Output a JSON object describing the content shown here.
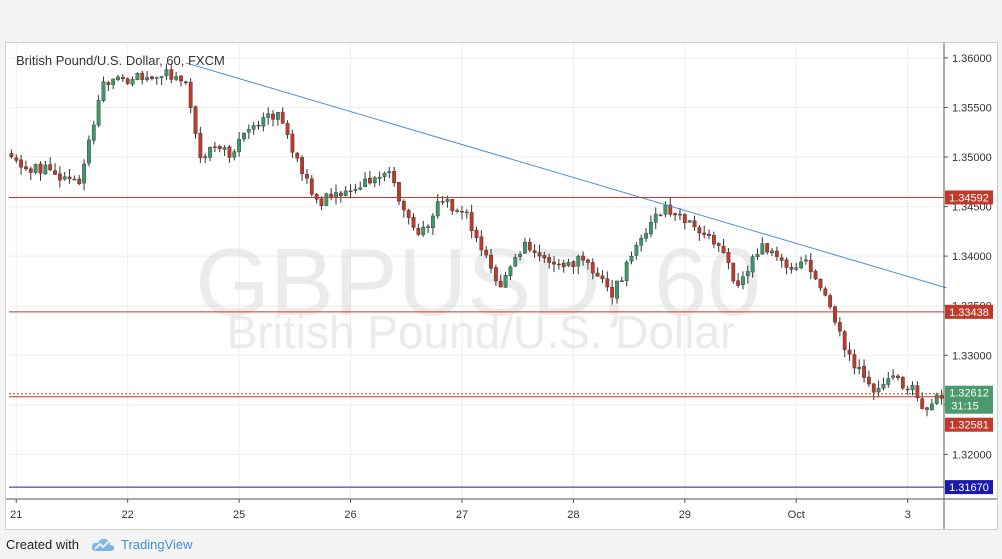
{
  "chart_data": {
    "type": "candlestick",
    "title": "British Pound/U.S. Dollar, 60, FXCM",
    "watermark": {
      "symbol": "GBPUSD, 60",
      "name": "British Pound/U.S. Dollar"
    },
    "ylim": [
      1.3155,
      1.3615
    ],
    "y_ticks": [
      "1.36000",
      "1.35500",
      "1.35000",
      "1.34500",
      "1.34000",
      "1.33500",
      "1.33000",
      "1.32500",
      "1.32000"
    ],
    "y_tick_values": [
      1.36,
      1.355,
      1.35,
      1.345,
      1.34,
      1.335,
      1.33,
      1.325,
      1.32
    ],
    "x_ticks": [
      {
        "label": "21",
        "bar": 1
      },
      {
        "label": "22",
        "bar": 24
      },
      {
        "label": "25",
        "bar": 47
      },
      {
        "label": "26",
        "bar": 70
      },
      {
        "label": "27",
        "bar": 93
      },
      {
        "label": "28",
        "bar": 116
      },
      {
        "label": "29",
        "bar": 139
      },
      {
        "label": "Oct",
        "bar": 162
      },
      {
        "label": "3",
        "bar": 185
      }
    ],
    "bar_count": 193,
    "up_color": "#3a9b6a",
    "down_color": "#c0392b",
    "seed": 20171003,
    "key_prices": [
      {
        "bar": 0,
        "close": 1.3495
      },
      {
        "bar": 8,
        "close": 1.3485
      },
      {
        "bar": 14,
        "close": 1.3475
      },
      {
        "bar": 19,
        "close": 1.3575
      },
      {
        "bar": 24,
        "close": 1.3578
      },
      {
        "bar": 32,
        "close": 1.3585
      },
      {
        "bar": 36,
        "close": 1.3575
      },
      {
        "bar": 39,
        "close": 1.3505
      },
      {
        "bar": 45,
        "close": 1.3505
      },
      {
        "bar": 50,
        "close": 1.353
      },
      {
        "bar": 55,
        "close": 1.3545
      },
      {
        "bar": 60,
        "close": 1.348
      },
      {
        "bar": 64,
        "close": 1.3455
      },
      {
        "bar": 70,
        "close": 1.347
      },
      {
        "bar": 78,
        "close": 1.348
      },
      {
        "bar": 84,
        "close": 1.342
      },
      {
        "bar": 89,
        "close": 1.3458
      },
      {
        "bar": 94,
        "close": 1.344
      },
      {
        "bar": 101,
        "close": 1.337
      },
      {
        "bar": 106,
        "close": 1.341
      },
      {
        "bar": 112,
        "close": 1.3395
      },
      {
        "bar": 119,
        "close": 1.3395
      },
      {
        "bar": 124,
        "close": 1.336
      },
      {
        "bar": 130,
        "close": 1.342
      },
      {
        "bar": 135,
        "close": 1.345
      },
      {
        "bar": 141,
        "close": 1.343
      },
      {
        "bar": 146,
        "close": 1.341
      },
      {
        "bar": 150,
        "close": 1.337
      },
      {
        "bar": 155,
        "close": 1.341
      },
      {
        "bar": 160,
        "close": 1.3385
      },
      {
        "bar": 164,
        "close": 1.3395
      },
      {
        "bar": 168,
        "close": 1.336
      },
      {
        "bar": 172,
        "close": 1.331
      },
      {
        "bar": 177,
        "close": 1.3265
      },
      {
        "bar": 181,
        "close": 1.3275
      },
      {
        "bar": 186,
        "close": 1.327
      },
      {
        "bar": 188,
        "close": 1.3245
      },
      {
        "bar": 192,
        "close": 1.326
      }
    ],
    "trendline": {
      "from": {
        "bar": 36,
        "price": 1.3595
      },
      "to": {
        "bar": 193,
        "price": 1.3368
      },
      "color": "#4a8fd8"
    },
    "horizontal_lines": [
      {
        "price": 1.34592,
        "label": "1.34592",
        "color": "#c0392b"
      },
      {
        "price": 1.33438,
        "label": "1.33438",
        "color": "#c0392b"
      },
      {
        "price": 1.32581,
        "label": "1.32581",
        "color": "#c0392b"
      },
      {
        "price": 1.3167,
        "label": "1.31670",
        "color": "#1a1aaa"
      }
    ],
    "current_price": {
      "price": 1.32612,
      "label": "1.32612",
      "countdown": "31:15",
      "color": "#4b9a6c"
    }
  },
  "footer": {
    "created_label": "Created with",
    "brand": "TradingView"
  }
}
